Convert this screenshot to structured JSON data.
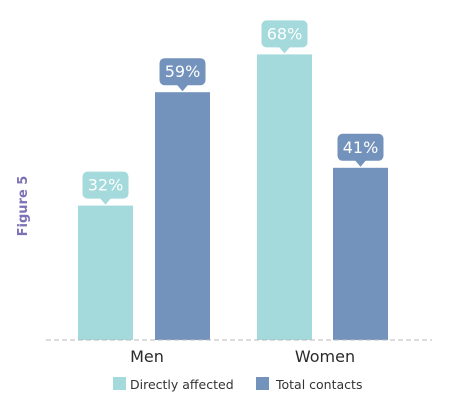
{
  "figure_label": "Figure 5",
  "chart_data": {
    "type": "bar",
    "categories": [
      "Men",
      "Women"
    ],
    "series": [
      {
        "name": "Directly affected",
        "values": [
          32,
          68
        ],
        "labels": [
          "32%",
          "68%"
        ],
        "color": "#a4dadb"
      },
      {
        "name": "Total contacts",
        "values": [
          59,
          41
        ],
        "labels": [
          "59%",
          "41%"
        ],
        "color": "#7393bd"
      }
    ],
    "ylim": [
      0,
      100
    ],
    "grid": false,
    "legend_position": "bottom",
    "baseline_color": "#b8b8b8",
    "category_label_color": "#2a2a2a",
    "data_label_text_color": "#ffffff",
    "figure_label_color": "#7d72b5",
    "legend_text_color": "#333333"
  }
}
